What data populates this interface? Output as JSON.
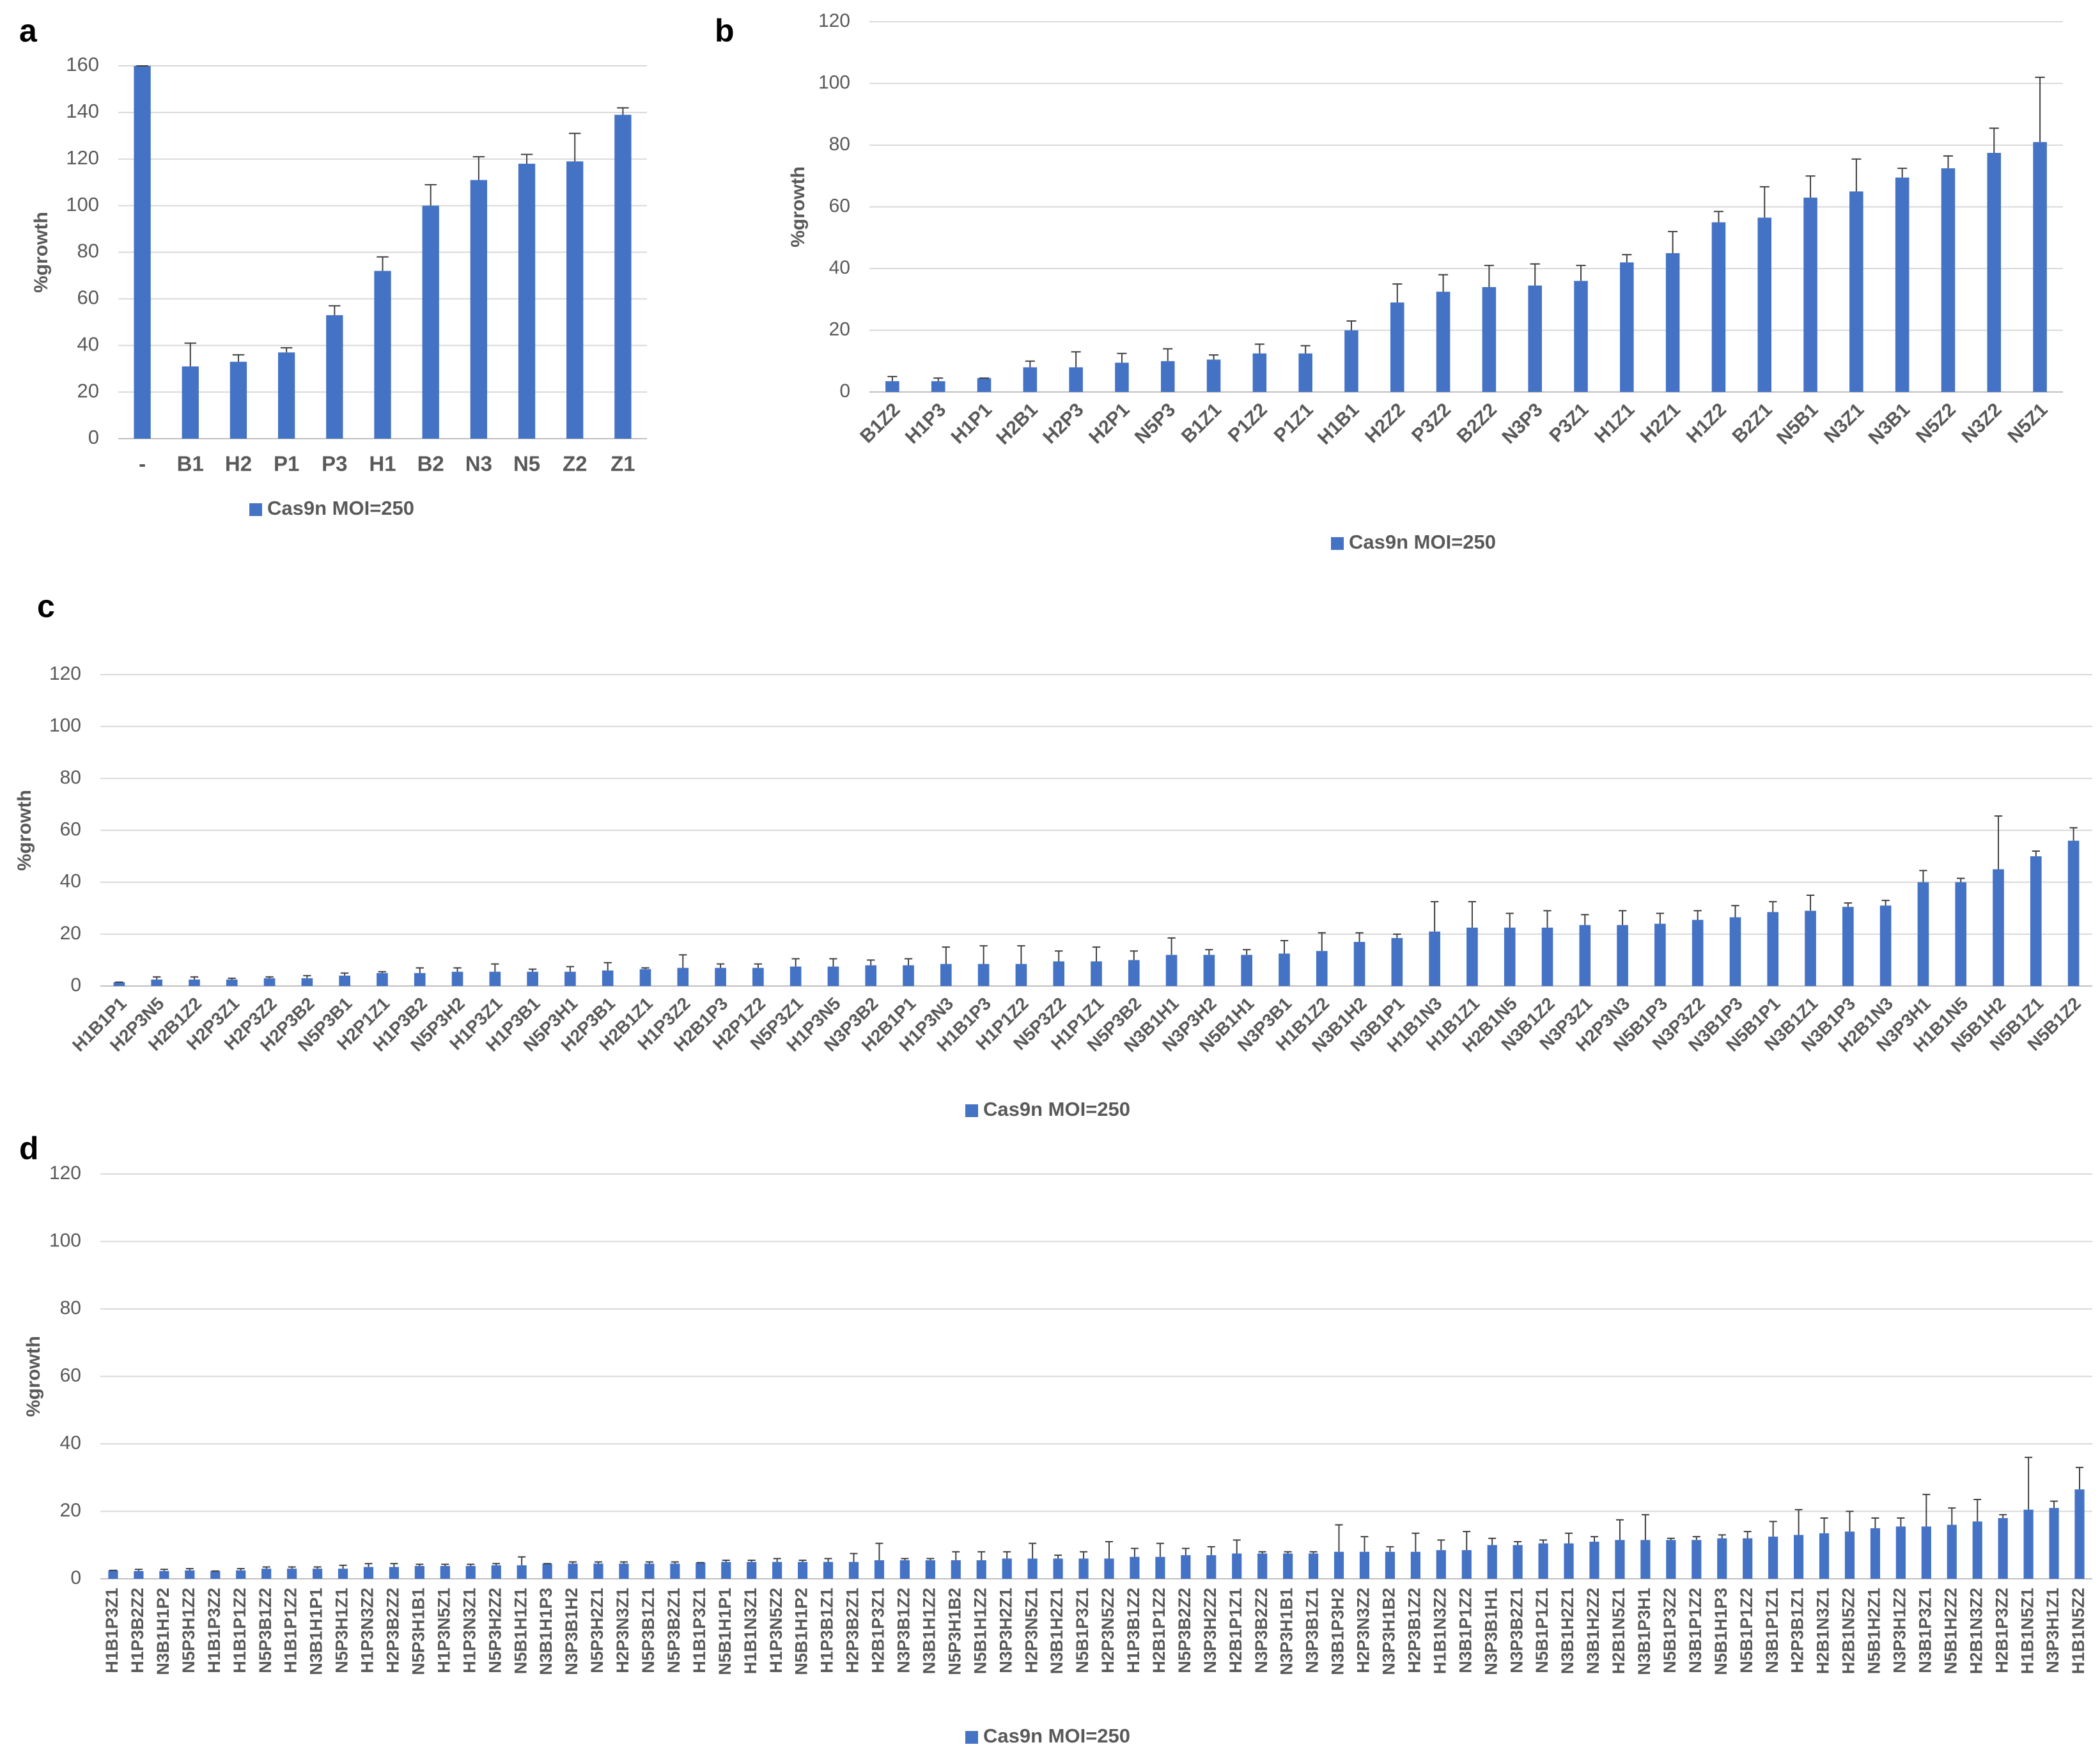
{
  "chart_data": [
    {
      "type": "bar",
      "label": "a",
      "y_label": "%growth",
      "categories": [
        "-",
        "B1",
        "H2",
        "P1",
        "P3",
        "H1",
        "B2",
        "N3",
        "N5",
        "Z2",
        "Z1"
      ],
      "series": [
        {
          "name": "Cas9n MOI=250",
          "color": "#4472c4",
          "values": [
            160,
            31,
            33,
            37,
            53,
            72,
            100,
            111,
            118,
            119,
            139
          ],
          "errors": [
            0,
            10,
            3,
            2,
            4,
            6,
            9,
            10,
            4,
            12,
            3
          ]
        }
      ],
      "ylim": [
        0,
        160
      ],
      "yticks": [
        0,
        20,
        40,
        60,
        80,
        100,
        120,
        140,
        160
      ],
      "grid": true
    },
    {
      "type": "bar",
      "label": "b",
      "y_label": "%growth",
      "categories": [
        "B1Z2",
        "H1P3",
        "H1P1",
        "H2B1",
        "H2P3",
        "H2P1",
        "N5P3",
        "B1Z1",
        "P1Z2",
        "P1Z1",
        "H1B1",
        "H2Z2",
        "P3Z2",
        "B2Z2",
        "N3P3",
        "P3Z1",
        "H1Z1",
        "H2Z1",
        "H1Z2",
        "B2Z1",
        "N5B1",
        "N3Z1",
        "N3B1",
        "N5Z2",
        "N3Z2",
        "N5Z1"
      ],
      "series": [
        {
          "name": "Cas9n MOI=250",
          "color": "#4472c4",
          "values": [
            3.5,
            3.5,
            4.5,
            8,
            8,
            9.5,
            10,
            10.5,
            12.5,
            12.5,
            20,
            29,
            32.5,
            34,
            34.5,
            36,
            42,
            45,
            55,
            56.5,
            63,
            65,
            69.5,
            72.5,
            77.5,
            81
          ],
          "errors": [
            1.5,
            1,
            0,
            2,
            5,
            3,
            4,
            1.5,
            3,
            2.5,
            3,
            6,
            5.5,
            7,
            7,
            5,
            2.5,
            7,
            3.5,
            10,
            7,
            10.5,
            3,
            4,
            8,
            21
          ]
        }
      ],
      "ylim": [
        0,
        120
      ],
      "yticks": [
        0,
        20,
        40,
        60,
        80,
        100,
        120
      ],
      "grid": true
    },
    {
      "type": "bar",
      "label": "c",
      "y_label": "%growth",
      "categories": [
        "H1B1P1",
        "H2P3N5",
        "H2B1Z2",
        "H2P3Z1",
        "H2P3Z2",
        "H2P3B2",
        "N5P3B1",
        "H2P1Z1",
        "H1P3B2",
        "N5P3H2",
        "H1P3Z1",
        "H1P3B1",
        "N5P3H1",
        "H2P3B1",
        "H2B1Z1",
        "H1P3Z2",
        "H2B1P3",
        "H2P1Z2",
        "N5P3Z1",
        "H1P3N5",
        "N3P3B2",
        "H2B1P1",
        "H1P3N3",
        "H1B1P3",
        "H1P1Z2",
        "N5P3Z2",
        "H1P1Z1",
        "N5P3B2",
        "N3B1H1",
        "N3P3H2",
        "N5B1H1",
        "N3P3B1",
        "H1B1Z2",
        "N3B1H2",
        "N3B1P1",
        "H1B1N3",
        "H1B1Z1",
        "H2B1N5",
        "N3B1Z2",
        "N3P3Z1",
        "H2P3N3",
        "N5B1P3",
        "N3P3Z2",
        "N3B1P3",
        "N5B1P1",
        "N3B1Z1",
        "N3B1P3",
        "H2B1N3",
        "N3P3H1",
        "H1B1N5",
        "N5B1H2",
        "N5B1Z1",
        "N5B1Z2"
      ],
      "series": [
        {
          "name": "Cas9n MOI=250",
          "color": "#4472c4",
          "values": [
            1.5,
            2.5,
            2.5,
            2.5,
            3,
            3,
            4,
            5,
            5,
            5.5,
            5.5,
            5.5,
            5.5,
            6,
            6.5,
            7,
            7,
            7,
            7.5,
            7.5,
            8,
            8,
            8.5,
            8.5,
            8.5,
            9.5,
            9.5,
            10,
            12,
            12,
            12,
            12.5,
            13.5,
            17,
            18.5,
            21,
            22.5,
            22.5,
            22.5,
            23.5,
            23.5,
            24,
            25.5,
            26.5,
            28.5,
            29,
            30.5,
            31,
            40,
            40,
            45,
            50,
            56
          ],
          "errors": [
            0,
            1,
            1,
            0.5,
            0.5,
            1,
            1,
            0.5,
            2,
            1.5,
            3,
            1,
            2,
            3,
            0.5,
            5,
            1.5,
            1.5,
            3,
            3,
            2,
            2.5,
            6.5,
            7,
            7,
            4,
            5.5,
            3.5,
            6.5,
            2,
            2,
            5,
            7,
            3.5,
            1.5,
            11.5,
            10,
            5.5,
            6.5,
            4,
            5.5,
            4,
            3.5,
            4.5,
            4,
            6,
            1.5,
            2,
            4.5,
            1.5,
            20.5,
            2,
            5
          ]
        }
      ],
      "ylim": [
        0,
        120
      ],
      "yticks": [
        0,
        20,
        40,
        60,
        80,
        100,
        120
      ],
      "grid": true
    },
    {
      "type": "bar",
      "label": "d",
      "y_label": "%growth",
      "categories": [
        "H1B1P3Z1",
        "H1P3B2Z2",
        "N3B1H1P2",
        "N5P3H1Z2",
        "H1B1P3Z2",
        "H1B1P1Z2",
        "N5P3B1Z2",
        "H1B1P1Z2",
        "N3B1H1P1",
        "N5P3H1Z1",
        "H1P3N3Z2",
        "H2P3B2Z2",
        "N5P3H1B1",
        "H1P3N5Z1",
        "H1P3N3Z1",
        "N5P3H2Z2",
        "N5B1H1Z1",
        "N3B1H1P3",
        "N3P3B1H2",
        "N5P3H2Z1",
        "H2P3N3Z1",
        "N5P3B1Z1",
        "N5P3B2Z1",
        "H1B1P3Z1",
        "N5B1H1P1",
        "H1B1N3Z1",
        "H1P3N5Z2",
        "N5B1H1P2",
        "H1P3B1Z1",
        "H2P3B2Z1",
        "H2B1P3Z1",
        "N3P3B1Z2",
        "N3B1H1Z2",
        "N5P3H1B2",
        "N5B1H1Z2",
        "N3P3H2Z1",
        "H2P3N5Z1",
        "N3B1H2Z1",
        "N5B1P3Z1",
        "H2P3N5Z2",
        "H1P3B1Z2",
        "H2B1P1Z2",
        "N5P3B2Z2",
        "N3P3H2Z2",
        "H2B1P1Z1",
        "N3P3B2Z2",
        "N3P3H1B1",
        "N3P3B1Z1",
        "N3B1P3H2",
        "H2P3N3Z2",
        "N3P3H1B2",
        "H2P3B1Z2",
        "H1B1N3Z2",
        "N3B1P1Z2",
        "N3P3B1H1",
        "N3P3B2Z1",
        "N5B1P1Z1",
        "N3B1H2Z1",
        "N3B1H2Z2",
        "H2B1N5Z1",
        "N3B1P3H1",
        "N5B1P3Z2",
        "N3B1P1Z2",
        "N5B1H1P3",
        "N5B1P1Z2",
        "N3B1P1Z1",
        "H2P3B1Z1",
        "H2B1N3Z1",
        "H2B1N5Z2",
        "N5B1H2Z1",
        "N3P3H1Z2",
        "N3B1P3Z1",
        "N5B1H2Z2",
        "H2B1N3Z2",
        "H2B1P3Z2",
        "H1B1N5Z1",
        "N3P3H1Z1",
        "H1B1N5Z2"
      ],
      "series": [
        {
          "name": "Cas9n MOI=250",
          "color": "#4472c4",
          "values": [
            2.5,
            2.3,
            2.3,
            2.5,
            2.3,
            2.5,
            3,
            3,
            3,
            3,
            3.5,
            3.5,
            3.8,
            3.8,
            3.8,
            4,
            4,
            4.5,
            4.5,
            4.5,
            4.5,
            4.5,
            4.5,
            4.8,
            5,
            5,
            5,
            5,
            5,
            5,
            5.5,
            5.5,
            5.5,
            5.5,
            5.5,
            6,
            6,
            6,
            6,
            6,
            6.5,
            6.5,
            7,
            7,
            7.5,
            7.5,
            7.5,
            7.5,
            8,
            8,
            8,
            8,
            8.5,
            8.5,
            10,
            10,
            10.5,
            10.5,
            11,
            11.5,
            11.5,
            11.5,
            11.5,
            12,
            12,
            12.5,
            13,
            13.5,
            14,
            15,
            15.5,
            15.5,
            16,
            17,
            18,
            20.5,
            21,
            26.5
          ],
          "errors": [
            0,
            0.5,
            0.5,
            0.5,
            0,
            0.5,
            0.5,
            0.5,
            0.5,
            1,
            1,
            1,
            0.5,
            0.5,
            0.5,
            0.5,
            2.5,
            0,
            0.5,
            0.5,
            0.5,
            0.5,
            0.5,
            0,
            0.5,
            0.5,
            1,
            0.5,
            1,
            2.5,
            5,
            0.5,
            0.5,
            2.5,
            2.5,
            2,
            4.5,
            1,
            2,
            5,
            2.5,
            4,
            2,
            2.5,
            4,
            0.5,
            0.5,
            0.5,
            8,
            4.5,
            1.5,
            5.5,
            3,
            5.5,
            2,
            1,
            1,
            3,
            1.5,
            6,
            7.5,
            0.5,
            1,
            1,
            2,
            4.5,
            7.5,
            4.5,
            6,
            3,
            2.5,
            9.5,
            5,
            6.5,
            1,
            15.5,
            2,
            6.5
          ]
        }
      ],
      "ylim": [
        0,
        120
      ],
      "yticks": [
        0,
        20,
        40,
        60,
        80,
        100,
        120
      ],
      "grid": true
    }
  ]
}
